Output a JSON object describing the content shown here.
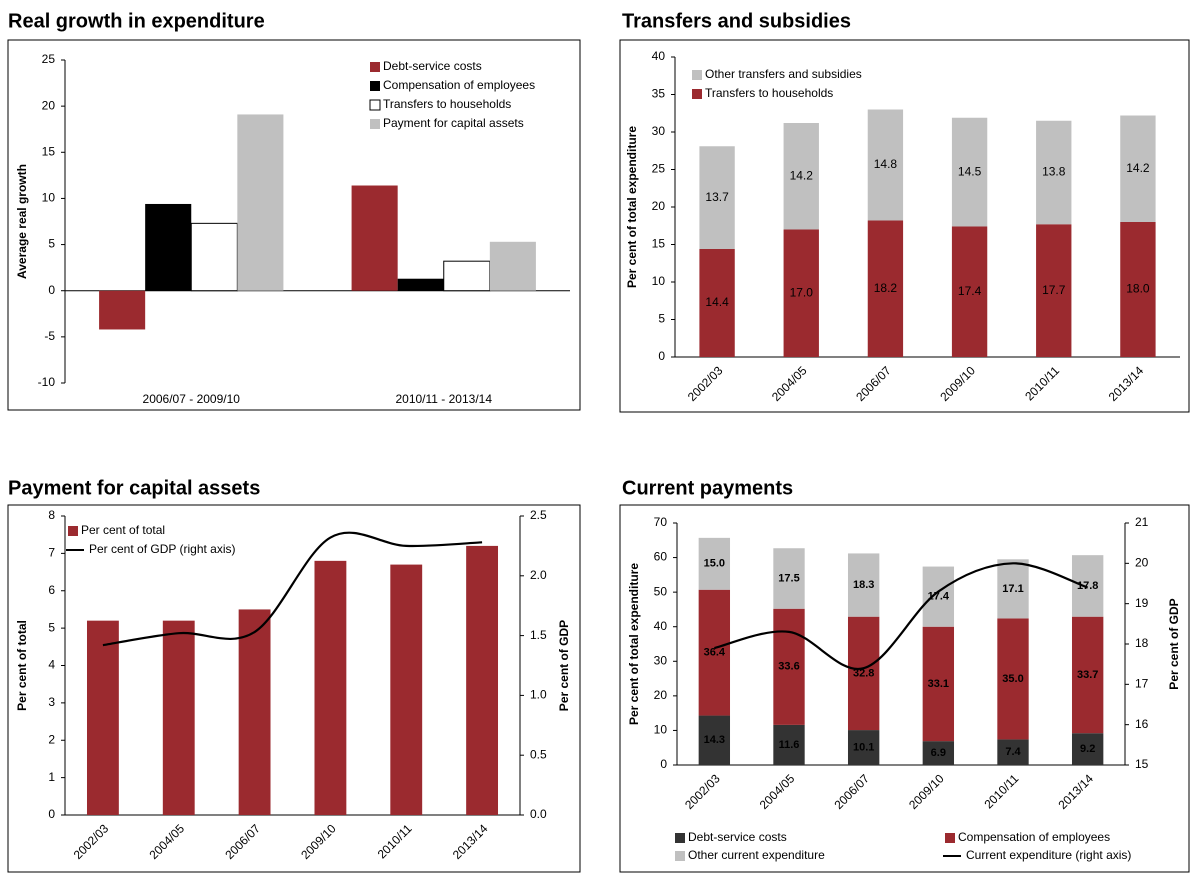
{
  "chart_data": [
    {
      "type": "bar",
      "title": "Real growth in expenditure",
      "y_label": "Average real growth",
      "categories": [
        "2006/07 - 2009/10",
        "2010/11 - 2013/14"
      ],
      "series": [
        {
          "name": "Debt-service costs",
          "color": "#9b2a2f",
          "values": [
            -4.2,
            11.4
          ]
        },
        {
          "name": "Compensation of employees",
          "color": "#000000",
          "values": [
            9.4,
            1.3
          ]
        },
        {
          "name": "Transfers to households",
          "color": "#ffffff",
          "values": [
            7.3,
            3.2
          ]
        },
        {
          "name": "Payment for capital assets",
          "color": "#c0c0c0",
          "values": [
            19.1,
            5.3
          ]
        }
      ],
      "ylim": [
        -10,
        25
      ],
      "yticks": [
        -10,
        -5,
        0,
        5,
        10,
        15,
        20,
        25
      ],
      "stacked": false,
      "legend": "upper right"
    },
    {
      "type": "bar",
      "title": "Transfers and subsidies",
      "y_label": "Per cent of total expenditure",
      "categories": [
        "2002/03",
        "2004/05",
        "2006/07",
        "2009/10",
        "2010/11",
        "2013/14"
      ],
      "series": [
        {
          "name": "Transfers to households",
          "color": "#9b2a2f",
          "values": [
            14.4,
            17.0,
            18.2,
            17.4,
            17.7,
            18.0
          ],
          "value_labels": [
            "14.4",
            "17.0",
            "18.2",
            "17.4",
            "17.7",
            "18.0"
          ]
        },
        {
          "name": "Other transfers and subsidies",
          "color": "#c0c0c0",
          "values": [
            13.7,
            14.2,
            14.8,
            14.5,
            13.8,
            14.2
          ],
          "value_labels": [
            "13.7",
            "14.2",
            "14.8",
            "14.5",
            "13.8",
            "14.2"
          ]
        }
      ],
      "ylim": [
        0,
        40
      ],
      "yticks": [
        0,
        5,
        10,
        15,
        20,
        25,
        30,
        35,
        40
      ],
      "stacked": true,
      "legend": "upper left"
    },
    {
      "type": "combo",
      "title": "Payment for capital assets",
      "y_label": "Per cent of total",
      "y2_label": "Per cent of GDP",
      "categories": [
        "2002/03",
        "2004/05",
        "2006/07",
        "2009/10",
        "2010/11",
        "2013/14"
      ],
      "series": [
        {
          "name": "Per cent of total",
          "type": "bar",
          "color": "#9b2a2f",
          "values": [
            5.2,
            5.2,
            5.5,
            6.8,
            6.7,
            7.2
          ]
        },
        {
          "name": "Per cent of GDP (right axis)",
          "type": "line",
          "axis": "y2",
          "color": "#000000",
          "values": [
            1.42,
            1.52,
            1.53,
            2.32,
            2.25,
            2.28
          ]
        }
      ],
      "ylim": [
        0,
        8
      ],
      "yticks": [
        0,
        1,
        2,
        3,
        4,
        5,
        6,
        7,
        8
      ],
      "y2lim": [
        0,
        2.5
      ],
      "y2ticks": [
        {
          "value": 0,
          "label": "0.0"
        },
        0.5,
        {
          "value": 1,
          "label": "1.0"
        },
        1.5,
        {
          "value": 2,
          "label": "2.0"
        },
        2.5
      ],
      "stacked": false,
      "legend": "upper left"
    },
    {
      "type": "combo",
      "title": "Current payments",
      "y_label": "Per cent of total expenditure",
      "y2_label": "Per cent of GDP",
      "categories": [
        "2002/03",
        "2004/05",
        "2006/07",
        "2009/10",
        "2010/11",
        "2013/14"
      ],
      "series": [
        {
          "name": "Debt-service costs",
          "type": "bar",
          "color": "#333333",
          "values": [
            14.3,
            11.6,
            10.1,
            6.9,
            7.4,
            9.2
          ]
        },
        {
          "name": "Compensation of employees",
          "type": "bar",
          "color": "#9b2a2f",
          "values": [
            36.4,
            33.6,
            32.8,
            33.1,
            35.0,
            33.7
          ],
          "value_labels": [
            "36.4",
            "33.6",
            "32.8",
            "33.1",
            "35.0",
            "33.7"
          ]
        },
        {
          "name": "Other current expenditure",
          "type": "bar",
          "color": "#c0c0c0",
          "values": [
            15.0,
            17.5,
            18.3,
            17.4,
            17.1,
            17.8
          ],
          "value_labels": [
            "15.0",
            "17.5",
            "18.3",
            "17.4",
            "17.1",
            "17.8"
          ]
        },
        {
          "name": "Current expenditure (right axis)",
          "type": "line",
          "axis": "y2",
          "color": "#000000",
          "values": [
            17.9,
            18.3,
            17.4,
            19.3,
            20.0,
            19.4
          ]
        }
      ],
      "ylim": [
        0,
        70
      ],
      "yticks": [
        0,
        10,
        20,
        30,
        40,
        50,
        60,
        70
      ],
      "y2lim": [
        15,
        21
      ],
      "y2ticks": [
        15,
        16,
        17,
        18,
        19,
        20,
        21
      ],
      "stacked": true,
      "legend": "lower center"
    }
  ]
}
